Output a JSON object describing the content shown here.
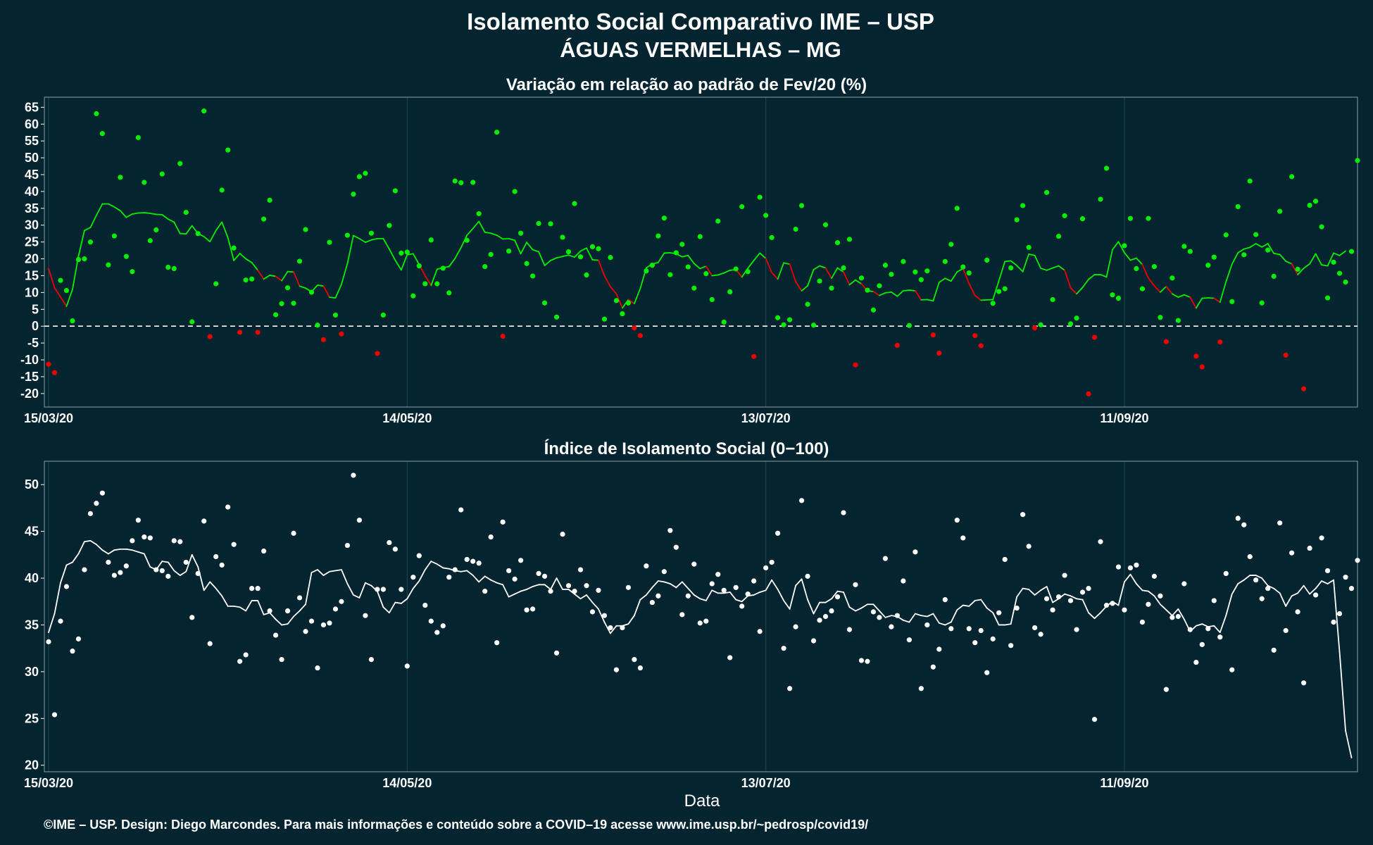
{
  "title": "Isolamento Social Comparativo IME – USP",
  "subtitle": "ÁGUAS VERMELHAS – MG",
  "xlabel": "Data",
  "footer": "©IME – USP. Design: Diego Marcondes. Para mais informações e conteúdo sobre a COVID–19 acesse www.ime.usp.br/~pedrosp/covid19/",
  "colors": {
    "background": "#042530",
    "positive": "#00ee00",
    "negative": "#ee0000",
    "index": "#ffffff",
    "grid": "#1d4650"
  },
  "chart_data": [
    {
      "type": "scatter",
      "title": "Variação em relação ao padrão de Fev/20 (%)",
      "x_start": "15/03/20",
      "x_end": "22/10/20",
      "x_ticks": [
        "15/03/20",
        "14/05/20",
        "13/07/20",
        "11/09/20"
      ],
      "x_tick_day_offsets": [
        0,
        60,
        120,
        180
      ],
      "ylim": [
        -24,
        68
      ],
      "y_ticks": [
        -20,
        -15,
        -10,
        -5,
        0,
        5,
        10,
        15,
        20,
        25,
        30,
        35,
        40,
        45,
        50,
        55,
        60,
        65
      ],
      "reference_line": 0,
      "grid": true,
      "series": [
        {
          "kind": "daily_points",
          "values": [
            -11.3,
            -13.8,
            13.6,
            10.6,
            1.6,
            19.8,
            20.0,
            25.0,
            63.1,
            57.2,
            18.2,
            26.8,
            44.2,
            20.7,
            16.2,
            56.0,
            42.7,
            25.4,
            28.6,
            45.2,
            17.5,
            17.1,
            48.3,
            33.8,
            1.3,
            27.5,
            63.9,
            -3.1,
            12.6,
            40.4,
            52.3,
            23.2,
            -1.8,
            13.7,
            14.0,
            -1.8,
            31.8,
            37.4,
            3.4,
            6.7,
            11.4,
            6.8,
            19.3,
            28.7,
            10.1,
            0.3,
            -4.0,
            24.9,
            3.3,
            -2.3,
            27.0,
            39.2,
            44.4,
            45.4,
            27.6,
            -8.1,
            3.3,
            29.9,
            40.2,
            21.7,
            22.0,
            9.0,
            17.9,
            12.6,
            25.6,
            12.6,
            17.2,
            9.9,
            43.1,
            42.6,
            25.5,
            42.7,
            33.4,
            17.7,
            21.3,
            57.6,
            -3.0,
            22.3,
            40.0,
            27.6,
            18.6,
            14.9,
            30.5,
            6.9,
            30.4,
            2.7,
            26.4,
            22.1,
            36.4,
            20.6,
            15.2,
            23.6,
            23.0,
            2.1,
            20.4,
            7.6,
            3.7,
            6.9,
            -0.5,
            -2.8,
            16.4,
            18.1,
            26.8,
            32.1,
            15.3,
            21.8,
            24.3,
            17.6,
            11.3,
            26.6,
            15.6,
            7.9,
            31.2,
            1.2,
            10.2,
            17.0,
            35.5,
            16.2,
            -9.0,
            38.3,
            32.9,
            26.3,
            2.5,
            0.4,
            1.9,
            28.8,
            35.8,
            6.5,
            0.3,
            13.4,
            30.1,
            11.3,
            24.8,
            17.3,
            25.8,
            -11.5,
            14.3,
            10.7,
            4.8,
            12.0,
            18.1,
            15.4,
            -5.7,
            19.2,
            0.2,
            16.1,
            13.8,
            16.4,
            -2.6,
            -8.0,
            19.2,
            24.3,
            35.0,
            17.6,
            15.8,
            -2.8,
            -5.8,
            19.6,
            6.8,
            10.3,
            11.1,
            17.3,
            31.6,
            35.8,
            23.4,
            -0.5,
            0.4,
            39.7,
            7.9,
            26.7,
            32.8,
            0.7,
            2.4,
            31.9,
            -20.1,
            -3.3,
            37.7,
            46.9,
            9.3,
            8.3,
            23.9,
            32.0,
            17.1,
            11.1,
            32.0,
            17.7,
            2.6,
            -4.6,
            14.3,
            1.7,
            23.7,
            22.2,
            -8.9,
            -12.1,
            18.1,
            20.5,
            -4.7,
            27.1,
            7.3,
            35.5,
            21.2,
            43.1,
            27.2,
            6.9,
            22.6,
            14.8,
            34.1,
            -8.6,
            44.4,
            16.9,
            -18.6,
            35.9,
            37.1,
            29.5,
            8.4,
            19.0,
            15.7,
            13.1,
            22.2,
            49.2
          ]
        },
        {
          "kind": "moving_average",
          "values": [
            17.1,
            11.4,
            8.7,
            5.9,
            10.9,
            20.8,
            28.4,
            29.3,
            32.9,
            36.3,
            36.3,
            35.4,
            34.3,
            32.3,
            33.3,
            33.6,
            33.7,
            33.5,
            33.2,
            33.1,
            31.8,
            30.9,
            27.5,
            27.4,
            29.8,
            27.5,
            26.6,
            25.1,
            28.4,
            30.9,
            26.3,
            19.5,
            21.6,
            20.0,
            18.9,
            16.6,
            14.0,
            15.1,
            14.8,
            13.5,
            16.2,
            16.1,
            11.9,
            11.3,
            10.2,
            12.2,
            11.9,
            8.6,
            8.4,
            12.4,
            18.6,
            26.9,
            26.0,
            24.9,
            25.6,
            26.0,
            26.0,
            22.9,
            19.6,
            16.7,
            21.2,
            21.5,
            18.3,
            15.0,
            12.1,
            16.9,
            17.4,
            17.7,
            20.1,
            23.3,
            27.0,
            29.0,
            31.1,
            27.9,
            27.6,
            27.0,
            25.9,
            26.0,
            25.5,
            21.5,
            24.9,
            22.7,
            22.1,
            18.0,
            19.5,
            20.3,
            20.7,
            21.1,
            20.5,
            22.3,
            23.2,
            19.7,
            19.6,
            15.0,
            11.7,
            9.6,
            5.4,
            7.9,
            6.7,
            11.2,
            17.3,
            18.5,
            18.9,
            21.7,
            21.8,
            21.5,
            20.6,
            21.0,
            18.6,
            17.1,
            17.8,
            15.0,
            15.2,
            15.8,
            16.6,
            16.8,
            14.6,
            17.2,
            19.5,
            21.7,
            20.1,
            15.9,
            14.0,
            18.8,
            18.4,
            13.2,
            10.5,
            12.0,
            16.8,
            17.9,
            17.3,
            14.2,
            17.3,
            16.1,
            12.3,
            13.7,
            12.6,
            10.5,
            10.3,
            9.1,
            9.9,
            10.1,
            8.9,
            10.5,
            10.7,
            10.5,
            7.8,
            7.9,
            7.5,
            13.0,
            14.2,
            13.4,
            16.1,
            17.1,
            12.7,
            9.1,
            7.7,
            7.8,
            7.9,
            13.5,
            19.2,
            19.4,
            18.0,
            16.2,
            21.4,
            21.0,
            17.2,
            16.6,
            17.3,
            17.9,
            16.6,
            11.4,
            9.6,
            11.5,
            13.9,
            15.3,
            15.3,
            14.6,
            22.7,
            25.1,
            21.8,
            19.6,
            20.2,
            18.3,
            14.3,
            12.0,
            10.1,
            11.8,
            9.6,
            8.6,
            9.3,
            8.6,
            5.4,
            8.3,
            8.4,
            8.3,
            7.1,
            13.2,
            18.4,
            21.8,
            22.9,
            23.4,
            24.5,
            23.5,
            24.5,
            21.6,
            21.3,
            19.3,
            18.5,
            15.3,
            17.2,
            18.5,
            21.5,
            18.2,
            17.9,
            21.7,
            21.0,
            22.3
          ]
        }
      ]
    },
    {
      "type": "scatter",
      "title": "Índice de Isolamento Social (0−100)",
      "x_start": "15/03/20",
      "x_end": "22/10/20",
      "x_ticks": [
        "15/03/20",
        "14/05/20",
        "13/07/20",
        "11/09/20"
      ],
      "x_tick_day_offsets": [
        0,
        60,
        120,
        180
      ],
      "xlabel": "Data",
      "ylim": [
        19.3,
        52.5
      ],
      "y_ticks": [
        20,
        25,
        30,
        35,
        40,
        45,
        50
      ],
      "grid": true,
      "series": [
        {
          "kind": "daily_points",
          "values": [
            33.2,
            25.4,
            35.4,
            39.1,
            32.2,
            33.5,
            40.9,
            46.9,
            48.0,
            49.1,
            41.7,
            40.3,
            40.6,
            41.3,
            44.0,
            46.2,
            44.4,
            44.3,
            40.9,
            40.8,
            40.2,
            44.0,
            43.9,
            41.7,
            35.8,
            40.5,
            46.1,
            33.0,
            42.3,
            41.4,
            47.6,
            43.6,
            31.1,
            31.8,
            38.9,
            38.9,
            42.9,
            36.5,
            33.9,
            31.3,
            36.5,
            44.8,
            37.9,
            34.3,
            35.4,
            30.4,
            35.0,
            35.2,
            36.7,
            37.5,
            43.5,
            51.0,
            46.2,
            36.0,
            31.3,
            38.8,
            38.8,
            43.8,
            43.1,
            38.8,
            30.6,
            40.1,
            42.4,
            37.1,
            35.4,
            34.2,
            34.9,
            40.1,
            40.9,
            47.3,
            42.0,
            41.8,
            41.6,
            38.6,
            44.4,
            33.1,
            46.0,
            40.8,
            39.9,
            41.9,
            36.6,
            36.7,
            40.5,
            40.2,
            38.6,
            32.0,
            44.7,
            39.2,
            38.6,
            40.9,
            39.2,
            36.4,
            38.7,
            36.0,
            34.7,
            30.2,
            34.7,
            39.0,
            31.3,
            30.4,
            41.3,
            37.4,
            38.1,
            40.7,
            45.1,
            43.3,
            36.1,
            38.1,
            41.5,
            35.2,
            35.4,
            39.4,
            40.4,
            38.7,
            31.5,
            39.0,
            37.0,
            38.3,
            39.7,
            34.3,
            41.1,
            41.7,
            44.8,
            32.5,
            28.2,
            34.8,
            48.3,
            40.2,
            33.3,
            35.5,
            35.9,
            36.5,
            38.0,
            47.0,
            34.5,
            39.3,
            31.2,
            31.1,
            36.4,
            35.8,
            42.1,
            34.8,
            36.0,
            39.7,
            33.4,
            42.8,
            28.2,
            35.0,
            30.5,
            32.4,
            37.7,
            34.6,
            46.2,
            44.3,
            34.6,
            33.1,
            34.4,
            29.9,
            33.5,
            36.3,
            42.0,
            32.8,
            36.8,
            46.8,
            43.4,
            34.7,
            34.0,
            37.8,
            36.6,
            38.0,
            40.3,
            37.6,
            34.5,
            38.5,
            38.9,
            24.9,
            43.9,
            37.1,
            37.3,
            41.2,
            36.6,
            41.1,
            41.4,
            35.3,
            37.2,
            40.2,
            38.1,
            28.1,
            35.8,
            35.9,
            39.4,
            34.5,
            31.0,
            32.9,
            34.6,
            37.6,
            33.7,
            40.5,
            30.2,
            46.4,
            45.7,
            42.3,
            39.8,
            37.8,
            38.9,
            32.3,
            45.9,
            34.4,
            42.7,
            36.4,
            28.8,
            43.2,
            38.2,
            44.3,
            40.8,
            35.3,
            36.2,
            40.1,
            38.9,
            41.9
          ]
        },
        {
          "kind": "moving_average",
          "values": [
            34.2,
            36.2,
            39.5,
            41.4,
            41.7,
            42.6,
            43.9,
            44.0,
            43.6,
            43.0,
            42.6,
            43.0,
            43.1,
            43.1,
            43.0,
            42.8,
            42.6,
            41.2,
            40.9,
            41.8,
            41.7,
            40.8,
            40.3,
            40.7,
            42.5,
            41.2,
            38.7,
            39.6,
            38.9,
            38.1,
            37.0,
            37.0,
            36.9,
            36.5,
            37.6,
            37.6,
            36.1,
            36.3,
            35.6,
            35.0,
            35.1,
            35.9,
            36.5,
            37.2,
            40.6,
            40.9,
            40.3,
            40.7,
            40.8,
            40.9,
            39.4,
            38.2,
            37.9,
            39.5,
            39.2,
            38.6,
            36.9,
            36.3,
            37.4,
            37.3,
            37.8,
            38.9,
            39.7,
            40.9,
            41.8,
            41.5,
            41.1,
            41.0,
            40.8,
            40.7,
            40.8,
            40.3,
            39.6,
            40.2,
            39.8,
            39.5,
            39.3,
            38.0,
            38.3,
            38.6,
            38.8,
            39.1,
            39.3,
            39.3,
            38.8,
            40.0,
            38.8,
            38.8,
            38.3,
            37.8,
            38.2,
            37.4,
            36.7,
            35.3,
            34.1,
            34.9,
            34.9,
            35.1,
            36.0,
            37.7,
            38.2,
            39.0,
            39.7,
            39.6,
            39.4,
            39.0,
            39.6,
            38.9,
            38.2,
            37.8,
            37.6,
            38.7,
            38.4,
            38.4,
            38.5,
            37.7,
            37.5,
            38.1,
            38.2,
            38.5,
            38.7,
            39.8,
            38.8,
            37.6,
            36.7,
            39.2,
            39.9,
            37.7,
            36.2,
            37.4,
            37.4,
            37.8,
            38.6,
            38.5,
            36.9,
            36.5,
            36.8,
            37.2,
            37.2,
            36.5,
            35.8,
            36.0,
            35.9,
            35.5,
            35.3,
            36.2,
            36.0,
            35.9,
            36.2,
            35.2,
            35.0,
            35.3,
            36.6,
            37.1,
            37.0,
            37.6,
            37.7,
            36.8,
            36.3,
            35.0,
            35.0,
            35.1,
            38.0,
            38.9,
            38.8,
            38.2,
            38.7,
            39.1,
            37.4,
            37.8,
            38.3,
            38.1,
            37.8,
            37.7,
            36.3,
            35.7,
            36.3,
            37.0,
            37.5,
            37.1,
            39.6,
            40.4,
            39.4,
            38.7,
            38.6,
            38.1,
            37.2,
            36.6,
            36.0,
            36.7,
            35.6,
            34.3,
            34.9,
            35.1,
            34.8,
            34.9,
            34.2,
            36.0,
            38.3,
            39.4,
            39.8,
            40.3,
            40.3,
            40.0,
            39.2,
            38.9,
            38.4,
            37.0,
            38.1,
            38.4,
            39.2,
            38.3,
            38.9,
            39.7,
            39.4,
            39.8,
            32.1,
            23.7,
            20.8
          ]
        }
      ]
    }
  ]
}
